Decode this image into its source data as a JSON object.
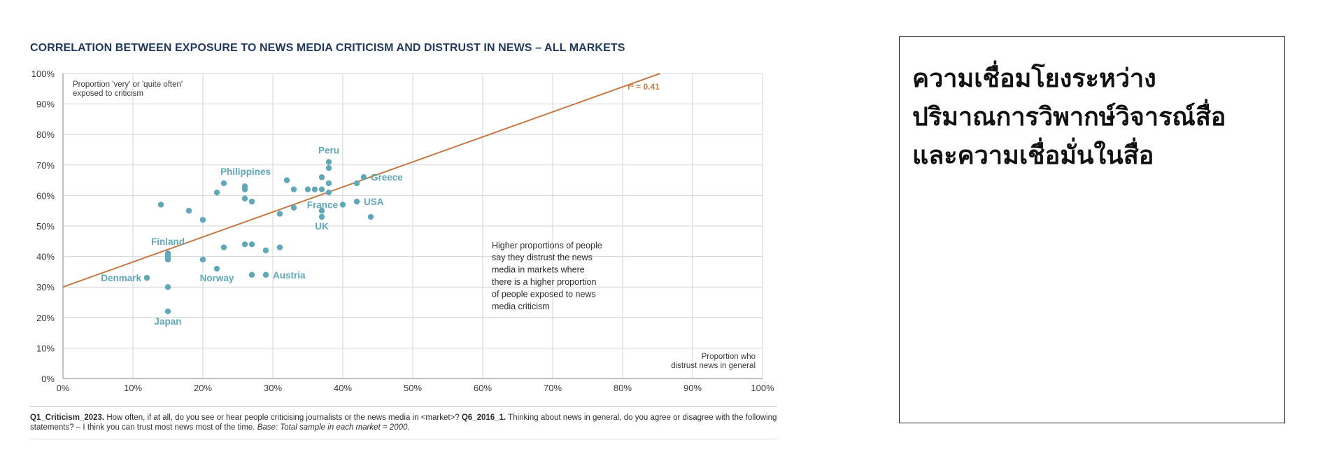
{
  "chart_data": {
    "type": "scatter",
    "title": "CORRELATION BETWEEN EXPOSURE TO NEWS MEDIA CRITICISM AND DISTRUST IN NEWS – ALL MARKETS",
    "xlabel": [
      "Proportion who",
      "distrust news in general"
    ],
    "ylabel": [
      "Proportion 'very' or 'quite often'",
      "exposed to criticism"
    ],
    "xlim": [
      0,
      100
    ],
    "ylim": [
      0,
      100
    ],
    "x_ticks": [
      "0%",
      "10%",
      "20%",
      "30%",
      "40%",
      "50%",
      "60%",
      "70%",
      "80%",
      "90%",
      "100%"
    ],
    "y_ticks": [
      "0%",
      "10%",
      "20%",
      "30%",
      "40%",
      "50%",
      "60%",
      "70%",
      "80%",
      "90%",
      "100%"
    ],
    "grid": true,
    "trendline": {
      "intercept": 30,
      "slope": 0.82,
      "label": "r² = 0.41",
      "color": "#c47a45"
    },
    "point_color": "#5fa8b8",
    "points": [
      {
        "x": 38,
        "y": 71,
        "label": "Peru"
      },
      {
        "x": 38,
        "y": 69
      },
      {
        "x": 22,
        "y": 61
      },
      {
        "x": 23,
        "y": 64,
        "label": "Philippines"
      },
      {
        "x": 26,
        "y": 63
      },
      {
        "x": 26,
        "y": 62
      },
      {
        "x": 26,
        "y": 59
      },
      {
        "x": 27,
        "y": 58
      },
      {
        "x": 32,
        "y": 65
      },
      {
        "x": 33,
        "y": 62
      },
      {
        "x": 35,
        "y": 62
      },
      {
        "x": 36,
        "y": 62
      },
      {
        "x": 37,
        "y": 66
      },
      {
        "x": 38,
        "y": 64
      },
      {
        "x": 37,
        "y": 62
      },
      {
        "x": 38,
        "y": 61
      },
      {
        "x": 42,
        "y": 64
      },
      {
        "x": 43,
        "y": 66,
        "label": "Greece"
      },
      {
        "x": 42,
        "y": 58,
        "label": "USA"
      },
      {
        "x": 40,
        "y": 57,
        "label": "France"
      },
      {
        "x": 33,
        "y": 56
      },
      {
        "x": 31,
        "y": 54
      },
      {
        "x": 37,
        "y": 55
      },
      {
        "x": 37,
        "y": 53,
        "label": "UK"
      },
      {
        "x": 44,
        "y": 53
      },
      {
        "x": 14,
        "y": 57
      },
      {
        "x": 18,
        "y": 55
      },
      {
        "x": 20,
        "y": 52
      },
      {
        "x": 15,
        "y": 41,
        "label": "Finland"
      },
      {
        "x": 15,
        "y": 40
      },
      {
        "x": 15,
        "y": 39
      },
      {
        "x": 20,
        "y": 39
      },
      {
        "x": 23,
        "y": 43
      },
      {
        "x": 26,
        "y": 44
      },
      {
        "x": 27,
        "y": 44
      },
      {
        "x": 29,
        "y": 42
      },
      {
        "x": 31,
        "y": 43
      },
      {
        "x": 22,
        "y": 36,
        "label": "Norway"
      },
      {
        "x": 27,
        "y": 34
      },
      {
        "x": 29,
        "y": 34,
        "label": "Austria"
      },
      {
        "x": 12,
        "y": 33,
        "label": "Denmark"
      },
      {
        "x": 15,
        "y": 30
      },
      {
        "x": 15,
        "y": 22,
        "label": "Japan"
      }
    ],
    "annotation": [
      "Higher proportions of people",
      "say they distrust the news",
      "media in markets where",
      "there is a higher proportion",
      "of people exposed to news",
      "media criticism"
    ]
  },
  "footnote": {
    "q1_label": "Q1_Criticism_2023.",
    "q1_text": " How often, if at all, do you see or hear people criticising journalists or the news media in <market>? ",
    "q6_label": "Q6_2016_1.",
    "q6_text": " Thinking about news in general, do you agree or disagree with the following statements? – I think you can trust most news most of the time. ",
    "base": "Base: Total sample in each market = 2000."
  },
  "side_panel": {
    "lines": [
      "ความเชื่อมโยงระหว่าง",
      "ปริมาณการวิพากษ์วิจารณ์สื่อ",
      "และความเชื่อมั่นในสื่อ"
    ]
  }
}
